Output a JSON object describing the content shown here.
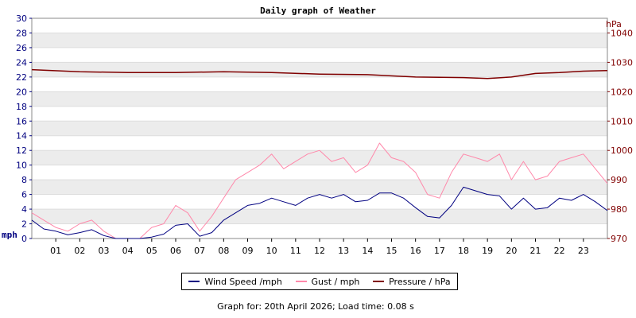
{
  "chart_data": {
    "type": "line",
    "title": "Daily graph of Weather",
    "ylabel_left": "mph",
    "ylabel_right": "hPa",
    "ylim_left": [
      0,
      30
    ],
    "ylim_right": [
      970,
      1045
    ],
    "yticks_left": [
      "0",
      "2",
      "4",
      "6",
      "8",
      "10",
      "12",
      "14",
      "16",
      "18",
      "20",
      "22",
      "24",
      "26",
      "28",
      "30"
    ],
    "yticks_right": [
      "970",
      "980",
      "990",
      "1000",
      "1010",
      "1020",
      "1030",
      "1040"
    ],
    "xlim": [
      0,
      24
    ],
    "xticks": [
      "01",
      "02",
      "03",
      "04",
      "05",
      "06",
      "07",
      "08",
      "09",
      "10",
      "11",
      "12",
      "13",
      "14",
      "15",
      "16",
      "17",
      "18",
      "19",
      "20",
      "21",
      "22",
      "23"
    ],
    "grid": "horizontal bands",
    "legend_position": "bottom",
    "series": [
      {
        "name": "Wind Speed /mph",
        "color": "#000080",
        "axis": "left",
        "x": [
          0,
          0.5,
          1,
          1.5,
          2,
          2.5,
          3,
          3.5,
          4,
          4.5,
          5,
          5.5,
          6,
          6.5,
          7,
          7.5,
          8,
          8.5,
          9,
          9.5,
          10,
          10.5,
          11,
          11.5,
          12,
          12.5,
          13,
          13.5,
          14,
          14.5,
          15,
          15.5,
          16,
          16.5,
          17,
          17.5,
          18,
          18.5,
          19,
          19.5,
          20,
          20.5,
          21,
          21.5,
          22,
          22.5,
          23,
          23.5,
          24
        ],
        "values": [
          2.5,
          1.3,
          1.0,
          0.5,
          0.8,
          1.2,
          0.4,
          0,
          0,
          0,
          0.2,
          0.6,
          1.8,
          2.0,
          0.3,
          0.8,
          2.5,
          3.5,
          4.5,
          4.8,
          5.5,
          5.0,
          4.5,
          5.5,
          6.0,
          5.5,
          6.0,
          5.0,
          5.2,
          6.2,
          6.2,
          5.5,
          4.2,
          3.0,
          2.8,
          4.5,
          7.0,
          6.5,
          6.0,
          5.8,
          4.0,
          5.5,
          4.0,
          4.2,
          5.5,
          5.2,
          6.0,
          5.0,
          3.8
        ]
      },
      {
        "name": "Gust / mph",
        "color": "#ff88aa",
        "axis": "left",
        "x": [
          0,
          0.5,
          1,
          1.5,
          2,
          2.5,
          3,
          3.5,
          4,
          4.5,
          5,
          5.5,
          6,
          6.5,
          7,
          7.5,
          8,
          8.5,
          9,
          9.5,
          10,
          10.5,
          11,
          11.5,
          12,
          12.5,
          13,
          13.5,
          14,
          14.5,
          15,
          15.5,
          16,
          16.5,
          17,
          17.5,
          18,
          18.5,
          19,
          19.5,
          20,
          20.5,
          21,
          21.5,
          22,
          22.5,
          23,
          23.5,
          24
        ],
        "values": [
          3.5,
          2.5,
          1.5,
          1.0,
          2.0,
          2.5,
          1.0,
          0,
          0,
          0,
          1.5,
          2.0,
          4.5,
          3.5,
          1.0,
          3.0,
          5.5,
          8.0,
          9.0,
          10.0,
          11.5,
          9.5,
          10.5,
          11.5,
          12.0,
          10.5,
          11.0,
          9.0,
          10.0,
          13.0,
          11.0,
          10.5,
          9.0,
          6.0,
          5.5,
          9.0,
          11.5,
          11.0,
          10.5,
          11.5,
          8.0,
          10.5,
          8.0,
          8.5,
          10.5,
          11.0,
          11.5,
          9.5,
          7.5
        ]
      },
      {
        "name": "Pressure / hPa",
        "color": "#800000",
        "axis": "right",
        "x": [
          0,
          2,
          4,
          6,
          8,
          10,
          12,
          14,
          16,
          18,
          19,
          20,
          21,
          22,
          23,
          24
        ],
        "values": [
          1027.5,
          1026.8,
          1026.5,
          1026.5,
          1026.8,
          1026.5,
          1026.0,
          1025.8,
          1025.0,
          1024.8,
          1024.5,
          1025.0,
          1026.2,
          1026.5,
          1027.0,
          1027.2
        ]
      }
    ]
  },
  "footer": "Graph for: 20th April 2026; Load time: 0.08 s"
}
